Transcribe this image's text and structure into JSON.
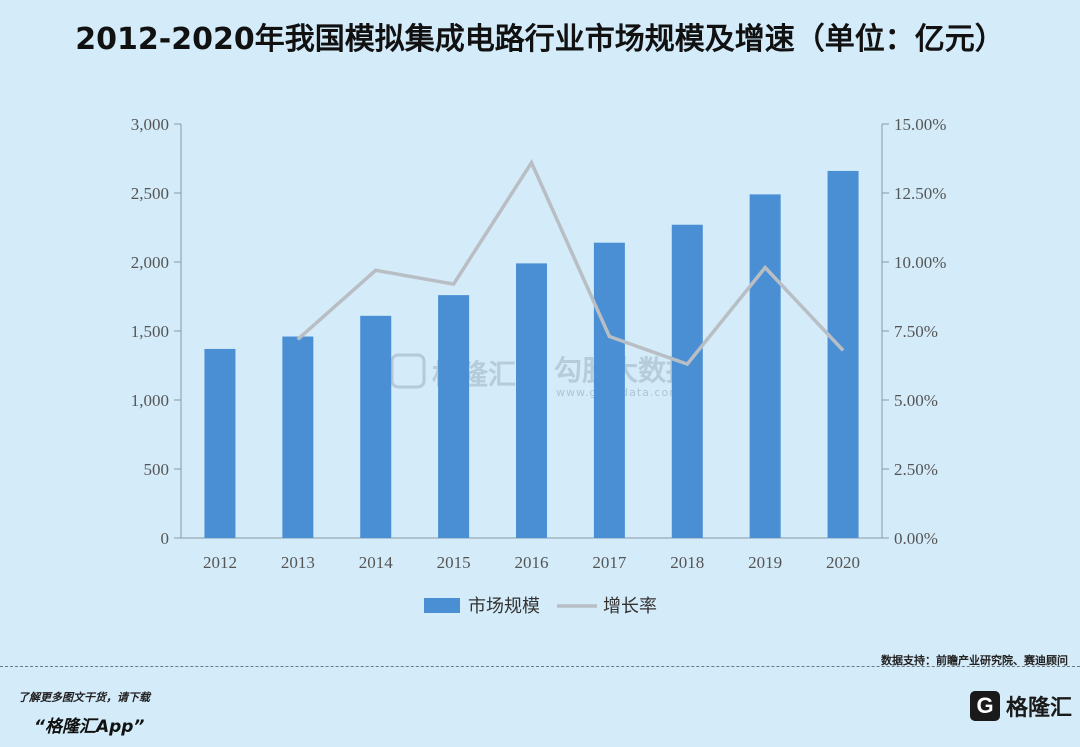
{
  "title": "2012-2020年我国模拟集成电路行业市场规模及增速（单位：亿元）",
  "source": "数据支持：前瞻产业研究院、赛迪顾问",
  "footer": {
    "promo_line1": "了解更多图文干货，请下载",
    "promo_line2": "“格隆汇App”",
    "brand_logo": "G",
    "brand_name": "格隆汇"
  },
  "watermark": {
    "left": "格隆汇",
    "right": "勾股大数据",
    "right_url": "www.gogudata.com"
  },
  "colors": {
    "bar": "#4a8fd4",
    "line": "#b8bec4",
    "background": "#d4ebf9"
  },
  "chart_data": {
    "type": "bar",
    "categories": [
      "2012",
      "2013",
      "2014",
      "2015",
      "2016",
      "2017",
      "2018",
      "2019",
      "2020"
    ],
    "series": [
      {
        "name": "市场规模",
        "type": "bar",
        "axis": "left",
        "values": [
          1370,
          1460,
          1610,
          1760,
          1990,
          2140,
          2270,
          2490,
          2660
        ]
      },
      {
        "name": "增长率",
        "type": "line",
        "axis": "right",
        "values": [
          null,
          0.072,
          0.097,
          0.092,
          0.136,
          0.073,
          0.063,
          0.098,
          0.068
        ]
      }
    ],
    "y_left": {
      "min": 0,
      "max": 3000,
      "ticks": [
        0,
        500,
        1000,
        1500,
        2000,
        2500,
        3000
      ],
      "tick_labels": [
        "0",
        "500",
        "1,000",
        "1,500",
        "2,000",
        "2,500",
        "3,000"
      ]
    },
    "y_right": {
      "min": 0,
      "max": 0.15,
      "ticks": [
        0,
        0.025,
        0.05,
        0.075,
        0.1,
        0.125,
        0.15
      ],
      "tick_labels": [
        "0.00%",
        "2.50%",
        "5.00%",
        "7.50%",
        "10.00%",
        "12.50%",
        "15.00%"
      ]
    },
    "legend_position": "bottom",
    "grid": false
  }
}
